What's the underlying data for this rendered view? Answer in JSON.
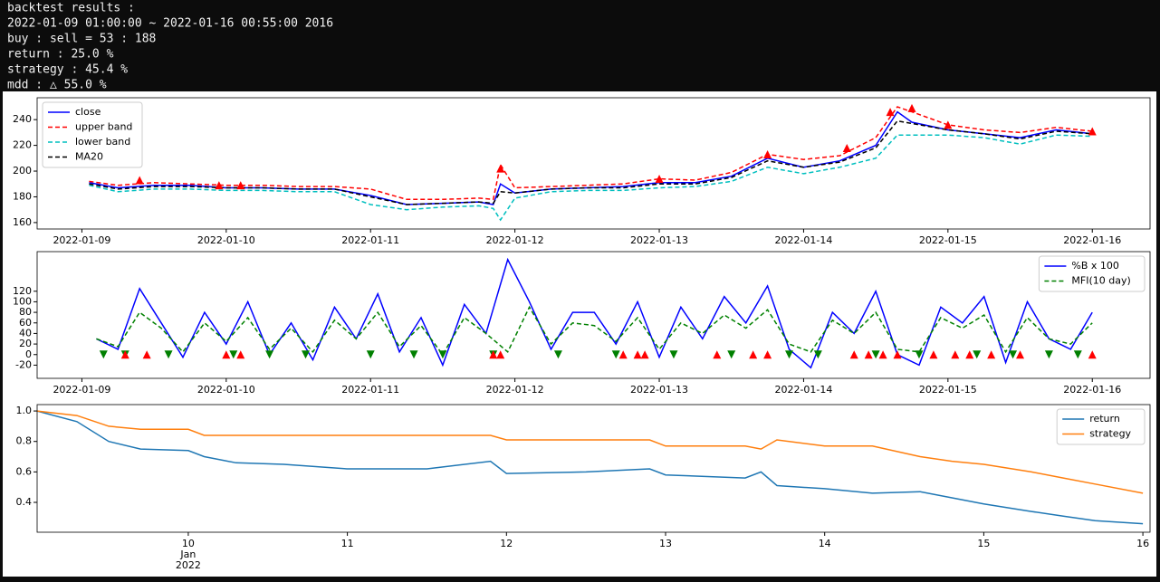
{
  "header": {
    "lines": [
      "backtest results :",
      "2022-01-09 01:00:00  ~  2022-01-16 00:55:00 2016",
      "buy : sell = 53 : 188",
      "return :  25.0 %",
      "strategy :  45.4 %",
      "mdd : △ 55.0 %"
    ]
  },
  "chart_data": [
    {
      "type": "line",
      "legend": "upper left",
      "xlim": [
        8.69,
        16.4
      ],
      "ylim": [
        155,
        257
      ],
      "xticks": [
        {
          "value": 9,
          "label": "2022-01-09"
        },
        {
          "value": 10,
          "label": "2022-01-10"
        },
        {
          "value": 11,
          "label": "2022-01-11"
        },
        {
          "value": 12,
          "label": "2022-01-12"
        },
        {
          "value": 13,
          "label": "2022-01-13"
        },
        {
          "value": 14,
          "label": "2022-01-14"
        },
        {
          "value": 15,
          "label": "2022-01-15"
        },
        {
          "value": 16,
          "label": "2022-01-16"
        }
      ],
      "yticks": [
        160,
        180,
        200,
        220,
        240
      ],
      "x": [
        9.05,
        9.25,
        9.5,
        9.75,
        10.0,
        10.25,
        10.5,
        10.75,
        11.0,
        11.25,
        11.5,
        11.75,
        11.85,
        11.9,
        12.0,
        12.25,
        12.5,
        12.75,
        13.0,
        13.25,
        13.5,
        13.75,
        14.0,
        14.25,
        14.5,
        14.65,
        14.75,
        15.0,
        15.25,
        15.5,
        15.75,
        16.0
      ],
      "series": [
        {
          "name": "close",
          "color": "#0000ff",
          "style": "solid",
          "values": [
            191,
            187,
            189,
            189,
            187,
            187,
            186,
            186,
            181,
            174,
            175,
            176,
            174,
            190,
            183,
            186,
            187,
            188,
            191,
            191,
            196,
            210,
            203,
            208,
            220,
            246,
            238,
            232,
            229,
            226,
            232,
            229
          ]
        },
        {
          "name": "upper band",
          "color": "#ff0000",
          "style": "dashed",
          "values": [
            192,
            189,
            191,
            190,
            189,
            189,
            188,
            188,
            186,
            178,
            178,
            179,
            178,
            205,
            187,
            188,
            189,
            190,
            194,
            193,
            199,
            213,
            209,
            212,
            226,
            250,
            246,
            236,
            232,
            230,
            234,
            231
          ]
        },
        {
          "name": "lower band",
          "color": "#00bfbf",
          "style": "dashed",
          "values": [
            189,
            184,
            186,
            186,
            185,
            185,
            184,
            184,
            174,
            170,
            172,
            173,
            171,
            162,
            179,
            184,
            185,
            185,
            187,
            188,
            192,
            203,
            198,
            203,
            210,
            228,
            228,
            228,
            226,
            221,
            228,
            227
          ]
        },
        {
          "name": "MA20",
          "color": "#000000",
          "style": "dashed",
          "values": [
            190,
            186,
            188,
            188,
            187,
            187,
            186,
            186,
            180,
            174,
            175,
            176,
            175,
            184,
            183,
            186,
            187,
            187,
            190,
            190,
            195,
            208,
            203,
            207,
            218,
            239,
            237,
            232,
            229,
            225,
            231,
            229
          ]
        }
      ],
      "markers": [
        {
          "shape": "up",
          "color": "#ff0000",
          "x": [
            9.4,
            9.95,
            10.1,
            11.9,
            13.0,
            13.75,
            14.3,
            14.6,
            14.75,
            15.0,
            16.0
          ],
          "values": [
            193,
            189,
            189,
            202,
            194,
            213,
            218,
            246,
            249,
            236,
            231
          ]
        }
      ]
    },
    {
      "type": "line",
      "legend": "upper right",
      "xlim": [
        8.69,
        16.4
      ],
      "ylim": [
        -45,
        195
      ],
      "xticks": [
        {
          "value": 9,
          "label": "2022-01-09"
        },
        {
          "value": 10,
          "label": "2022-01-10"
        },
        {
          "value": 11,
          "label": "2022-01-11"
        },
        {
          "value": 12,
          "label": "2022-01-12"
        },
        {
          "value": 13,
          "label": "2022-01-13"
        },
        {
          "value": 14,
          "label": "2022-01-14"
        },
        {
          "value": 15,
          "label": "2022-01-15"
        },
        {
          "value": 16,
          "label": "2022-01-16"
        }
      ],
      "yticks": [
        -20,
        0,
        20,
        40,
        60,
        80,
        100,
        120
      ],
      "x": [
        9.1,
        9.25,
        9.4,
        9.55,
        9.7,
        9.85,
        10.0,
        10.15,
        10.3,
        10.45,
        10.6,
        10.75,
        10.9,
        11.05,
        11.2,
        11.35,
        11.5,
        11.65,
        11.8,
        11.95,
        12.1,
        12.25,
        12.4,
        12.55,
        12.7,
        12.85,
        13.0,
        13.15,
        13.3,
        13.45,
        13.6,
        13.75,
        13.9,
        14.05,
        14.2,
        14.35,
        14.5,
        14.65,
        14.8,
        14.95,
        15.1,
        15.25,
        15.4,
        15.55,
        15.7,
        15.85,
        16.0
      ],
      "series": [
        {
          "name": "%B x 100",
          "color": "#0000ff",
          "style": "solid",
          "values": [
            30,
            10,
            125,
            60,
            -5,
            80,
            20,
            100,
            0,
            60,
            -10,
            90,
            30,
            115,
            5,
            70,
            -20,
            95,
            40,
            180,
            100,
            10,
            80,
            80,
            20,
            100,
            -5,
            90,
            30,
            110,
            60,
            130,
            10,
            -25,
            80,
            40,
            120,
            0,
            -20,
            90,
            60,
            110,
            -15,
            100,
            30,
            10,
            80
          ]
        },
        {
          "name": "MFI(10 day)",
          "color": "#008000",
          "style": "dashed",
          "values": [
            30,
            15,
            80,
            50,
            5,
            60,
            25,
            70,
            10,
            50,
            5,
            65,
            30,
            80,
            15,
            55,
            0,
            70,
            40,
            5,
            90,
            20,
            60,
            55,
            25,
            70,
            10,
            60,
            40,
            75,
            50,
            85,
            20,
            5,
            65,
            40,
            80,
            10,
            5,
            70,
            50,
            75,
            5,
            70,
            30,
            20,
            60
          ]
        }
      ],
      "markers": [
        {
          "shape": "down",
          "color": "#008000",
          "x": [
            9.15,
            9.3,
            9.6,
            10.05,
            10.3,
            10.55,
            11.0,
            11.3,
            11.5,
            11.85,
            12.3,
            12.7,
            13.1,
            13.5,
            13.9,
            14.1,
            14.5,
            14.8,
            15.2,
            15.45,
            15.7,
            15.9
          ],
          "values": [
            0,
            0,
            0,
            0,
            0,
            0,
            0,
            0,
            0,
            0,
            0,
            0,
            0,
            0,
            0,
            0,
            0,
            0,
            0,
            0,
            0,
            0
          ]
        },
        {
          "shape": "up",
          "color": "#ff0000",
          "x": [
            9.3,
            9.45,
            10.0,
            10.1,
            11.85,
            11.9,
            12.75,
            12.85,
            12.9,
            13.4,
            13.65,
            13.75,
            14.35,
            14.45,
            14.55,
            14.65,
            14.9,
            15.05,
            15.15,
            15.3,
            15.5,
            16.0
          ],
          "values": [
            0,
            0,
            0,
            0,
            0,
            0,
            0,
            0,
            0,
            0,
            0,
            0,
            0,
            0,
            0,
            0,
            0,
            0,
            0,
            0,
            0,
            0
          ]
        }
      ]
    },
    {
      "type": "line",
      "legend": "upper right",
      "xlim": [
        9.05,
        16.045
      ],
      "ylim": [
        0.204,
        1.042
      ],
      "xticks": [
        10,
        11,
        12,
        13,
        14,
        15,
        16
      ],
      "x_sublabel": [
        "Jan",
        "2022"
      ],
      "yticks": [
        0.4,
        0.6,
        0.8,
        {
          "value": 1,
          "label": "1.0"
        }
      ],
      "x": [
        9.05,
        9.3,
        9.5,
        9.7,
        10.0,
        10.1,
        10.3,
        10.6,
        11.0,
        11.5,
        11.9,
        12.0,
        12.5,
        12.9,
        13.0,
        13.5,
        13.6,
        13.7,
        14.0,
        14.3,
        14.6,
        14.8,
        15.0,
        15.3,
        15.5,
        15.7,
        16.0
      ],
      "series": [
        {
          "name": "return",
          "color": "#1f77b4",
          "style": "solid",
          "values": [
            1.0,
            0.93,
            0.8,
            0.75,
            0.74,
            0.7,
            0.66,
            0.65,
            0.62,
            0.62,
            0.67,
            0.59,
            0.6,
            0.62,
            0.58,
            0.56,
            0.6,
            0.51,
            0.49,
            0.46,
            0.47,
            0.43,
            0.39,
            0.34,
            0.31,
            0.28,
            0.26
          ]
        },
        {
          "name": "strategy",
          "color": "#ff7f0e",
          "style": "solid",
          "values": [
            1.0,
            0.97,
            0.9,
            0.88,
            0.88,
            0.84,
            0.84,
            0.84,
            0.84,
            0.84,
            0.84,
            0.81,
            0.81,
            0.81,
            0.77,
            0.77,
            0.75,
            0.81,
            0.77,
            0.77,
            0.7,
            0.67,
            0.65,
            0.6,
            0.56,
            0.52,
            0.46
          ]
        }
      ],
      "markers": []
    }
  ]
}
